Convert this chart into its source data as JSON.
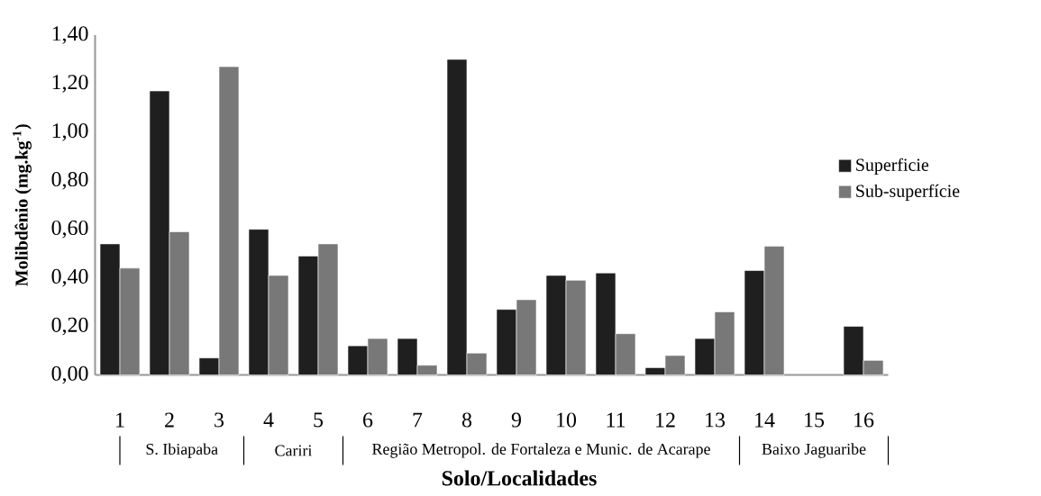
{
  "chart_data": {
    "type": "bar",
    "xlabel": "Solo/Localidades",
    "ylabel": "Molibdênio (mg.kg$^{-1}$)",
    "categories": [
      "1",
      "2",
      "3",
      "4",
      "5",
      "6",
      "7",
      "8",
      "9",
      "10",
      "11",
      "12",
      "13",
      "14",
      "15",
      "16"
    ],
    "series": [
      {
        "name": "Superficie",
        "color": "#1f1f1f",
        "values": [
          0.54,
          1.17,
          0.07,
          0.6,
          0.49,
          0.12,
          0.15,
          1.3,
          0.27,
          0.41,
          0.42,
          0.03,
          0.15,
          0.43,
          null,
          0.2
        ]
      },
      {
        "name": "Sub-superfície",
        "color": "#787878",
        "values": [
          0.44,
          0.59,
          1.27,
          0.41,
          0.54,
          0.15,
          0.04,
          0.09,
          0.31,
          0.39,
          0.17,
          0.08,
          0.26,
          0.53,
          null,
          0.06
        ]
      }
    ],
    "ylim": [
      0,
      1.4
    ],
    "yticks": [
      {
        "value": 0,
        "label": "0,00"
      },
      {
        "value": 0.2,
        "label": "0,20"
      },
      {
        "value": 0.4,
        "label": "0,40"
      },
      {
        "value": 0.6,
        "label": "0,60"
      },
      {
        "value": 0.8,
        "label": "0,80"
      },
      {
        "value": 1.0,
        "label": "1,00"
      },
      {
        "value": 1.2,
        "label": "1,20"
      },
      {
        "value": 1.4,
        "label": "1,40"
      }
    ],
    "legend": "right",
    "annotations": [
      "S. Ibiapaba",
      "Cariri",
      "Região Metropol. de Fortaleza e Munic. de Acarape",
      "Baixo Jaguaribe"
    ]
  }
}
